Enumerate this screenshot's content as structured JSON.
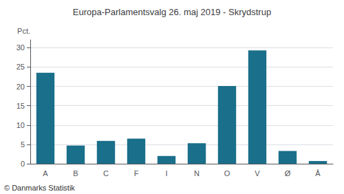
{
  "chart_data": {
    "type": "bar",
    "title": "Europa-Parlamentsvalg 26. maj 2019 - Skrydstrup",
    "ylabel": "Pct.",
    "annotations": [
      "© Danmarks Statistik"
    ],
    "categories": [
      "A",
      "B",
      "C",
      "F",
      "I",
      "N",
      "O",
      "V",
      "Ø",
      "Å"
    ],
    "values": [
      23.5,
      4.7,
      5.9,
      6.5,
      2.0,
      5.3,
      20.1,
      29.3,
      3.3,
      0.7
    ],
    "color": "#1a6f8a",
    "ylim": [
      0,
      32
    ],
    "yticks": [
      0,
      5,
      10,
      15,
      20,
      25,
      30
    ],
    "grid": true
  }
}
